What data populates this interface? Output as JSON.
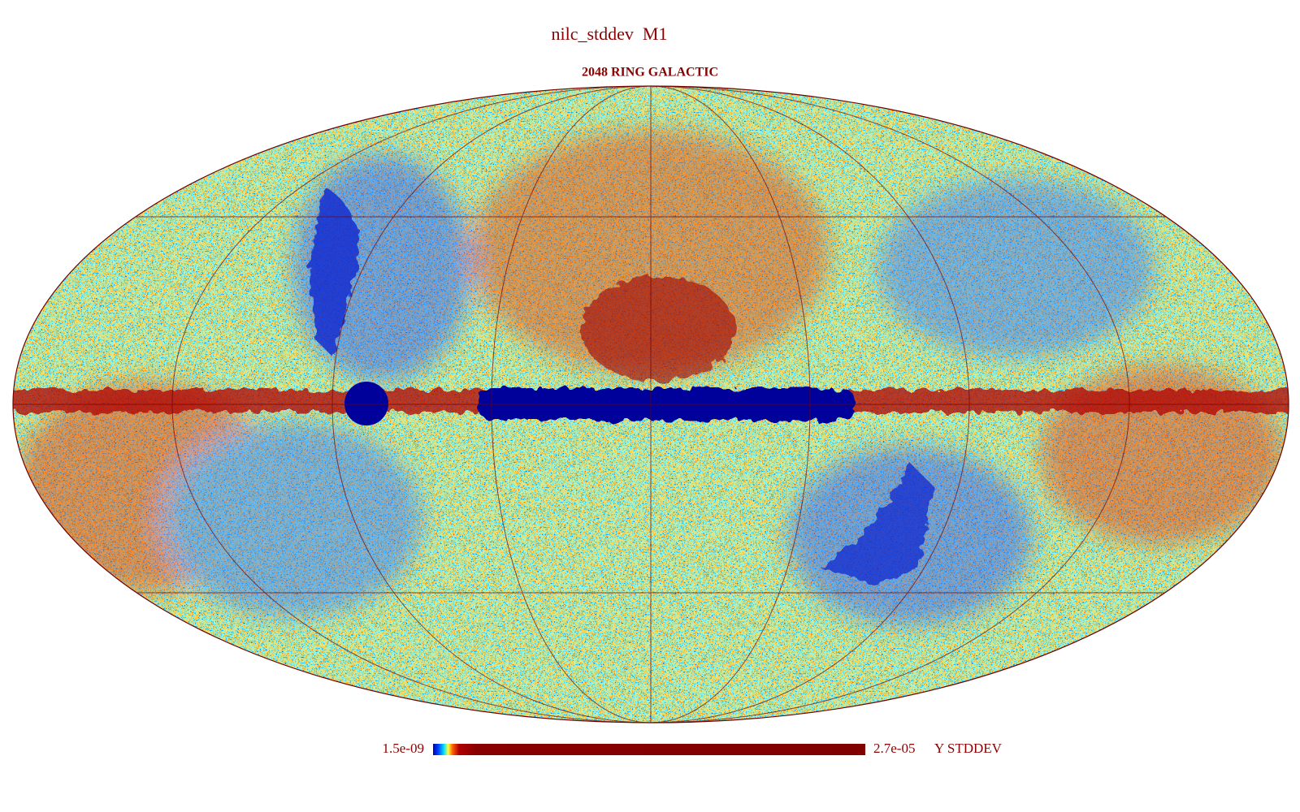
{
  "header": {
    "title": "nilc_stddev  M1",
    "subtitle": "2048 RING GALACTIC"
  },
  "colorbar": {
    "min_label": "1.5e-09",
    "max_label": "2.7e-05",
    "unit": "Y STDDEV"
  }
}
